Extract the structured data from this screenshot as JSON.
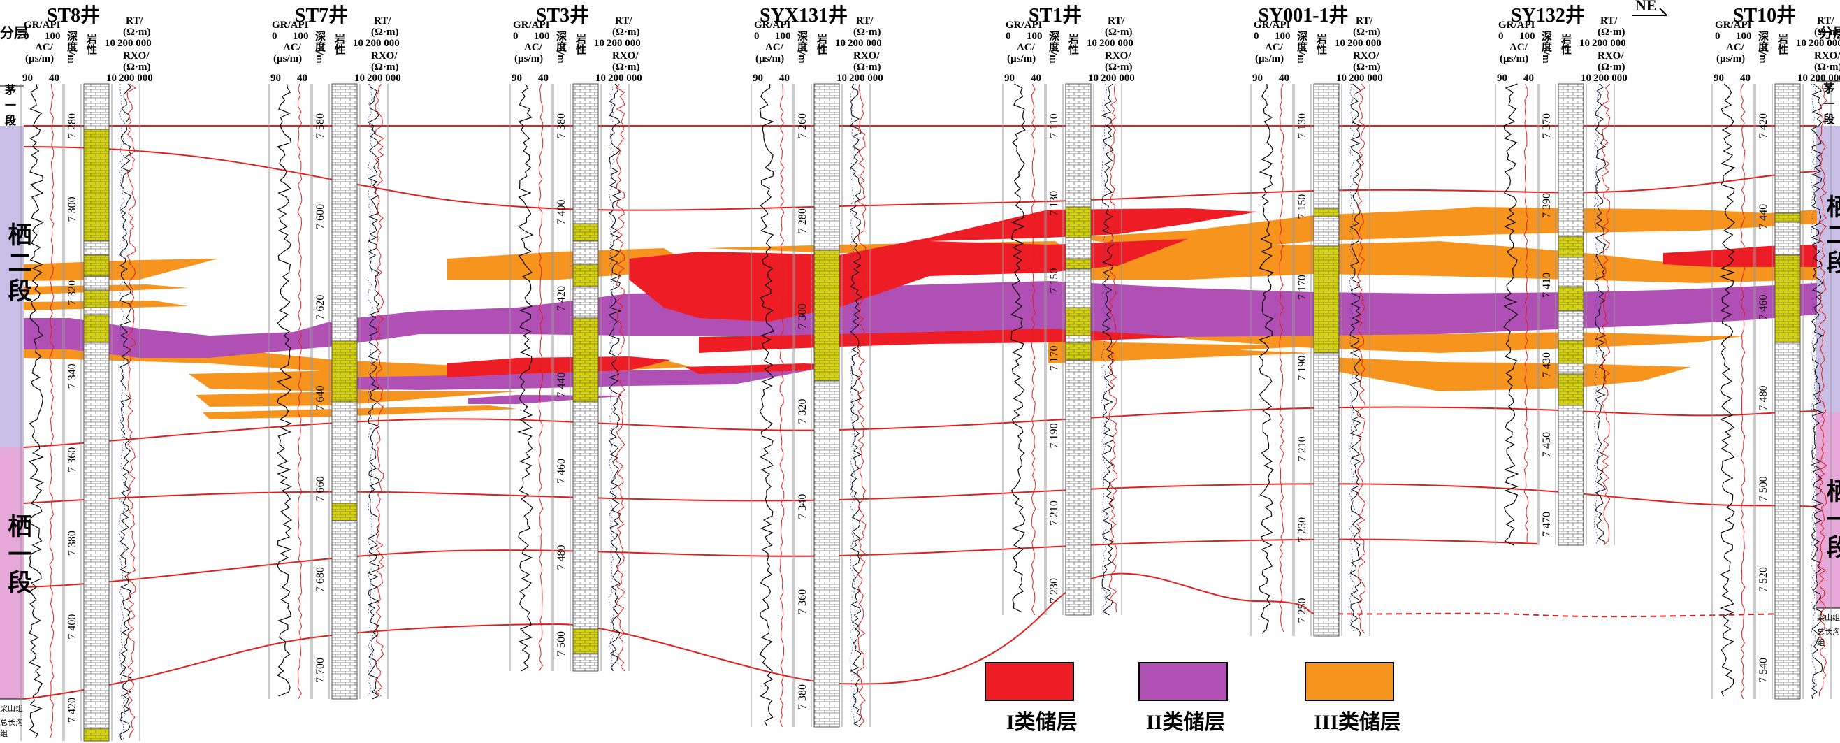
{
  "direction": "NE",
  "layer_header": "分层",
  "zones": {
    "mao": "茅一段",
    "qi2": "栖二段",
    "qi1": "栖一段",
    "liang": "梁山组",
    "zong": "总长沟组"
  },
  "track_headers": {
    "gr": "GR/API",
    "gr_range": [
      "0",
      "100"
    ],
    "ac": "AC/",
    "ac_unit": "(µs/m)",
    "ac_range": [
      "90",
      "40"
    ],
    "depth": "深度/m",
    "lith": "岩性",
    "rt": "RT/",
    "rt_unit": "(Ω·m)",
    "rxo": "RXO/",
    "rxo_unit": "(Ω·m)",
    "res_range": [
      "10",
      "200 000"
    ]
  },
  "wells": [
    {
      "name": "ST8井",
      "depths": [
        "7 280",
        "7 300",
        "7 320",
        "7 340",
        "7 360",
        "7 380",
        "7 400",
        "7 420"
      ]
    },
    {
      "name": "ST7井",
      "depths": [
        "7 580",
        "7 600",
        "7 620",
        "7 640",
        "7 660",
        "7 680",
        "7 700"
      ]
    },
    {
      "name": "ST3井",
      "depths": [
        "7 380",
        "7 400",
        "7 420",
        "7 440",
        "7 460",
        "7 480",
        "7 500"
      ]
    },
    {
      "name": "SYX131井",
      "depths": [
        "7 260",
        "7 280",
        "7 300",
        "7 320",
        "7 340",
        "7 360",
        "7 380"
      ]
    },
    {
      "name": "ST1井",
      "depths": [
        "7 110",
        "7 130",
        "7 150",
        "7 170",
        "7 190",
        "7 210",
        "7 230"
      ]
    },
    {
      "name": "SY001-1井",
      "depths": [
        "7 130",
        "7 150",
        "7 170",
        "7 190",
        "7 210",
        "7 230",
        "7 250"
      ]
    },
    {
      "name": "SY132井",
      "depths": [
        "7 370",
        "7 390",
        "7 410",
        "7 430",
        "7 450",
        "7 470"
      ]
    },
    {
      "name": "ST10井",
      "depths": [
        "7 420",
        "7 440",
        "7 460",
        "7 480",
        "7 500",
        "7 520",
        "7 540"
      ]
    }
  ],
  "legend": [
    {
      "label": "I类储层",
      "color": "#ee1c25"
    },
    {
      "label": "II类储层",
      "color": "#b04fb4"
    },
    {
      "label": "III类储层",
      "color": "#f7941d"
    }
  ],
  "colors": {
    "qi2_zone": "#c9bfe6",
    "qi1_zone": "#e6a8d8",
    "correlation_line": "#e0201e",
    "lith_fill": "#d9d900"
  }
}
